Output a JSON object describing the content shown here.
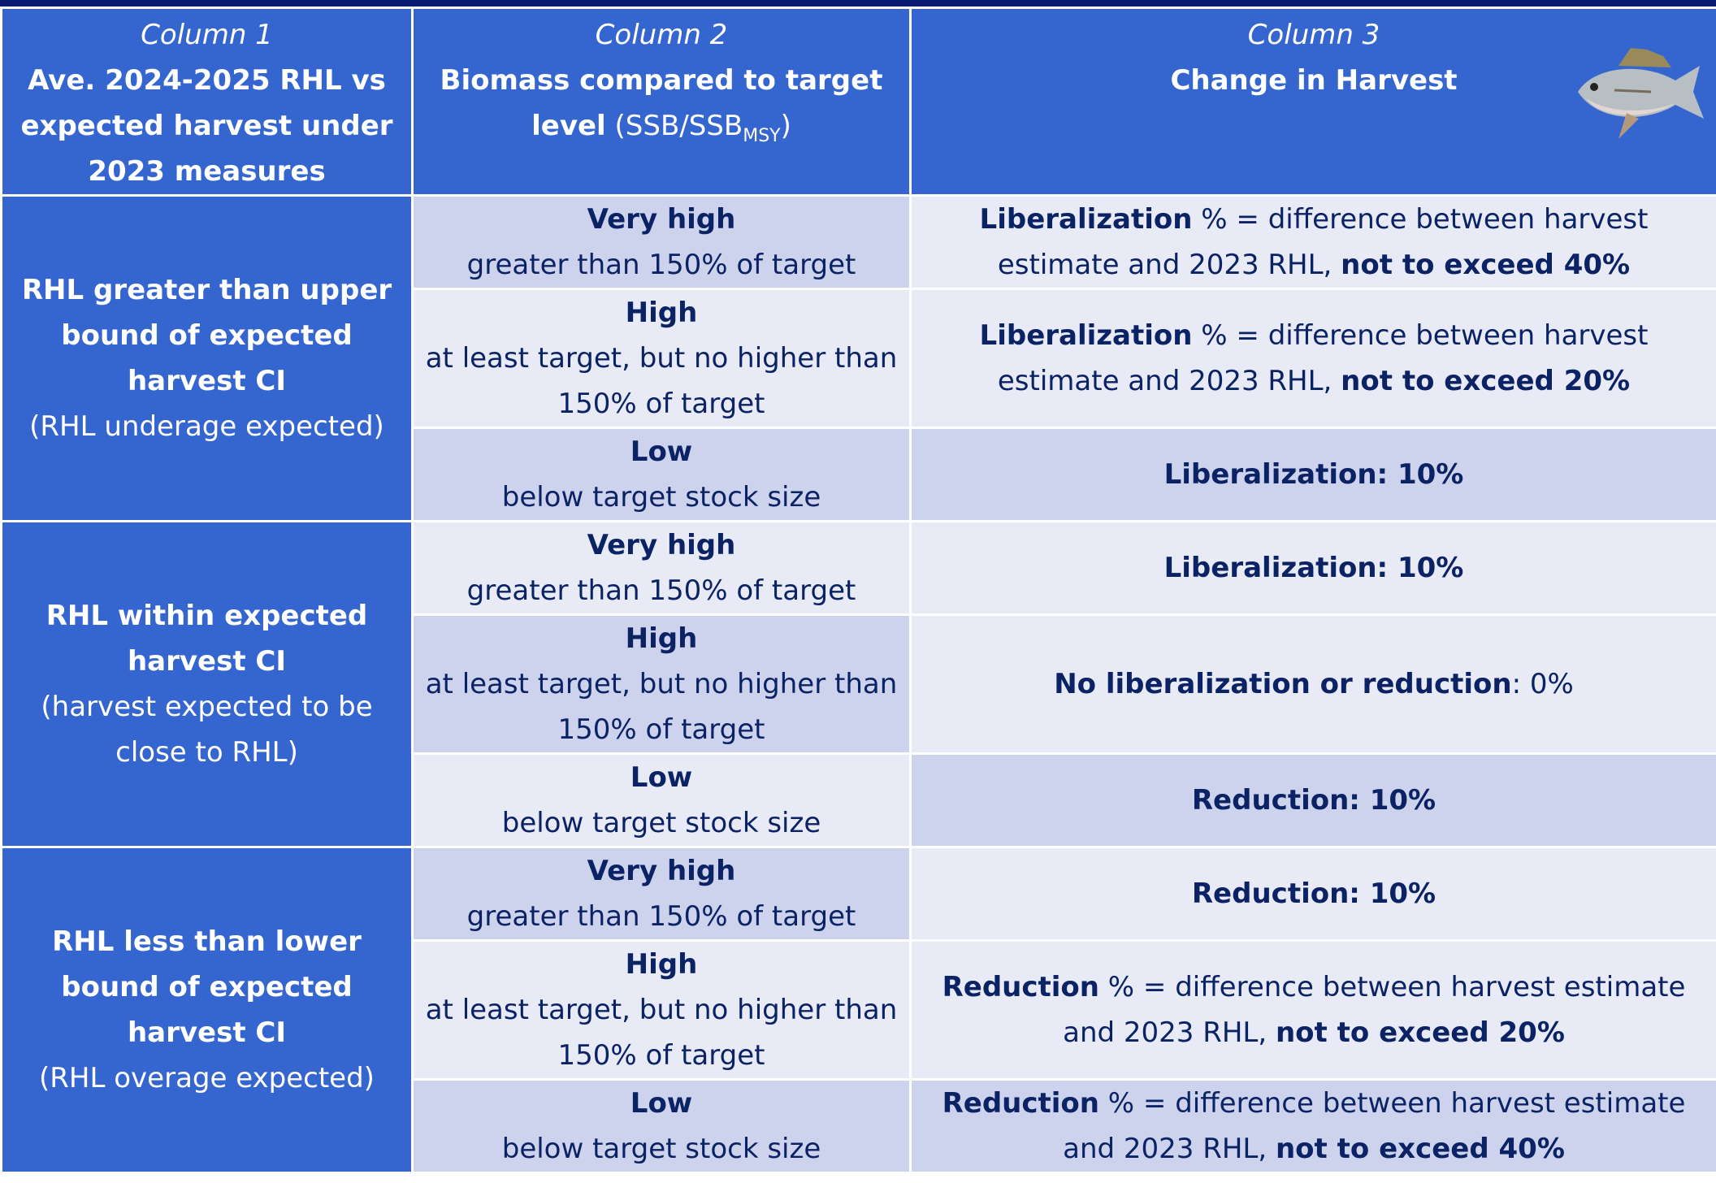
{
  "header": {
    "columns": [
      {
        "label": "Column 1",
        "title": [
          {
            "text": "Ave. 2024-2025 RHL vs expected harvest under 2023 measures",
            "bold": true
          }
        ]
      },
      {
        "label": "Column 2",
        "title": [
          {
            "text": "Biomass compared to target level",
            "bold": true
          },
          {
            "text": " (SSB/SSB"
          },
          {
            "text": "MSY",
            "sub": true
          },
          {
            "text": ")"
          }
        ]
      },
      {
        "label": "Column 3",
        "title": [
          {
            "text": "Change in Harvest",
            "bold": true
          }
        ]
      }
    ]
  },
  "groups": [
    {
      "title": "RHL greater than upper bound of expected harvest CI",
      "note": "(RHL underage expected)",
      "rows": [
        {
          "level": "Very high",
          "description": "greater than 150% of target",
          "change": [
            {
              "text": "Liberalization",
              "bold": true
            },
            {
              "text": " % = difference between harvest estimate and 2023 RHL, "
            },
            {
              "text": "not to exceed 40%",
              "bold": true
            }
          ]
        },
        {
          "level": "High",
          "description": "at least target, but no higher than 150% of target",
          "change": [
            {
              "text": "Liberalization",
              "bold": true
            },
            {
              "text": " % = difference between harvest estimate and 2023 RHL, "
            },
            {
              "text": "not to exceed 20%",
              "bold": true
            }
          ]
        },
        {
          "level": "Low",
          "description": "below target stock size",
          "change": [
            {
              "text": "Liberalization: 10%",
              "bold": true
            }
          ]
        }
      ]
    },
    {
      "title": "RHL within expected harvest CI",
      "note": "(harvest expected to be close to RHL)",
      "rows": [
        {
          "level": "Very high",
          "description": "greater than 150% of target",
          "change": [
            {
              "text": "Liberalization: 10%",
              "bold": true
            }
          ]
        },
        {
          "level": "High",
          "description": "at least target, but no higher than 150% of target",
          "change": [
            {
              "text": "No liberalization or reduction",
              "bold": true
            },
            {
              "text": ": 0%"
            }
          ]
        },
        {
          "level": "Low",
          "description": "below target stock size",
          "change": [
            {
              "text": "Reduction: 10%",
              "bold": true
            }
          ]
        }
      ]
    },
    {
      "title": "RHL less than lower bound of expected harvest CI",
      "note": "(RHL overage expected)",
      "rows": [
        {
          "level": "Very high",
          "description": "greater than 150% of target",
          "change": [
            {
              "text": "Reduction: 10%",
              "bold": true
            }
          ]
        },
        {
          "level": "High",
          "description": "at least target, but no higher than 150% of target",
          "change": [
            {
              "text": "Reduction",
              "bold": true
            },
            {
              "text": " % = difference between harvest estimate and 2023 RHL, "
            },
            {
              "text": "not to exceed 20%",
              "bold": true
            }
          ]
        },
        {
          "level": "Low",
          "description": "below target stock size",
          "change": [
            {
              "text": "Reduction",
              "bold": true
            },
            {
              "text": " % = difference between harvest estimate and 2023 RHL, "
            },
            {
              "text": "not to exceed 40%",
              "bold": true
            }
          ]
        }
      ]
    }
  ]
}
